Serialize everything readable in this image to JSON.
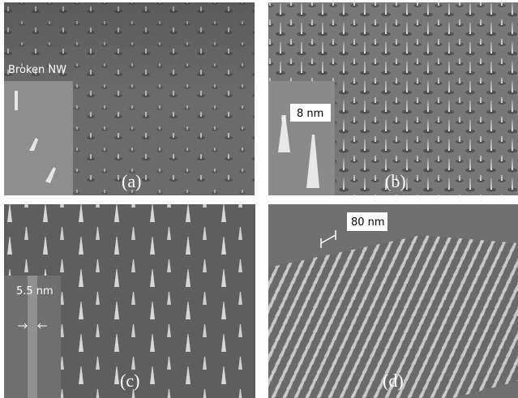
{
  "panels": [
    {
      "label": "(a)",
      "inset_label": "Broken NW"
    },
    {
      "label": "(b)",
      "inset_label": "8 nm"
    },
    {
      "label": "(c)",
      "inset_label": "5.5 nm"
    },
    {
      "label": "(d)",
      "inset_label": "80 nm"
    }
  ]
}
